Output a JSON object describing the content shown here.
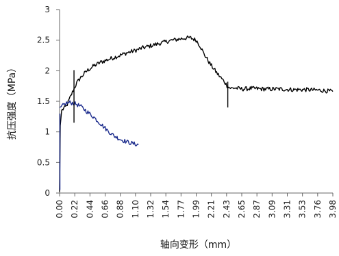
{
  "chart_data": {
    "type": "line",
    "xlabel": "轴向变形（mm）",
    "ylabel": "抗压强度（MPa）",
    "xlim": [
      0,
      3.98
    ],
    "ylim": [
      0,
      3
    ],
    "x_ticks": [
      "0.00",
      "0.22",
      "0.44",
      "0.66",
      "0.88",
      "1.10",
      "1.32",
      "1.54",
      "1.77",
      "1.99",
      "2.21",
      "2.43",
      "2.65",
      "2.87",
      "3.09",
      "3.31",
      "3.53",
      "3.76",
      "3.98"
    ],
    "y_ticks": [
      "0",
      "0.5",
      "1",
      "1.5",
      "2",
      "2.5",
      "3"
    ],
    "grid": false,
    "series": [
      {
        "color": "#000000",
        "x": [
          0.0,
          0.01,
          0.03,
          0.06,
          0.1,
          0.15,
          0.2,
          0.25,
          0.3,
          0.4,
          0.5,
          0.6,
          0.7,
          0.8,
          0.9,
          1.0,
          1.1,
          1.2,
          1.3,
          1.4,
          1.5,
          1.6,
          1.7,
          1.8,
          1.9,
          1.99,
          2.05,
          2.1,
          2.2,
          2.3,
          2.4,
          2.45,
          2.5,
          2.55,
          2.65,
          2.8,
          3.0,
          3.2,
          3.4,
          3.6,
          3.8,
          3.98
        ],
        "y": [
          0.02,
          1.1,
          1.35,
          1.38,
          1.42,
          1.55,
          1.68,
          1.8,
          1.88,
          2.0,
          2.08,
          2.14,
          2.18,
          2.22,
          2.26,
          2.3,
          2.33,
          2.37,
          2.4,
          2.43,
          2.46,
          2.49,
          2.51,
          2.53,
          2.54,
          2.5,
          2.4,
          2.28,
          2.1,
          1.95,
          1.82,
          1.74,
          1.71,
          1.72,
          1.7,
          1.71,
          1.7,
          1.7,
          1.69,
          1.69,
          1.68,
          1.66
        ]
      },
      {
        "color": "#1a2a8c",
        "x": [
          0.0,
          0.05,
          0.1,
          0.15,
          0.2,
          0.25,
          0.3,
          0.35,
          0.4,
          0.5,
          0.6,
          0.7,
          0.8,
          0.9,
          1.0,
          1.1,
          1.15
        ],
        "y": [
          1.4,
          1.43,
          1.47,
          1.48,
          1.47,
          1.45,
          1.42,
          1.38,
          1.33,
          1.24,
          1.13,
          1.02,
          0.93,
          0.87,
          0.83,
          0.8,
          0.79
        ]
      }
    ],
    "spikes": [
      {
        "x": 0.21,
        "y_from": 1.15,
        "y_to": 2.01,
        "color": "#000000"
      },
      {
        "x": 2.45,
        "y_from": 1.4,
        "y_to": 1.82,
        "color": "#000000"
      },
      {
        "x": 0.005,
        "y_from": 0.05,
        "y_to": 1.3,
        "color": "#1a2a8c"
      }
    ]
  }
}
